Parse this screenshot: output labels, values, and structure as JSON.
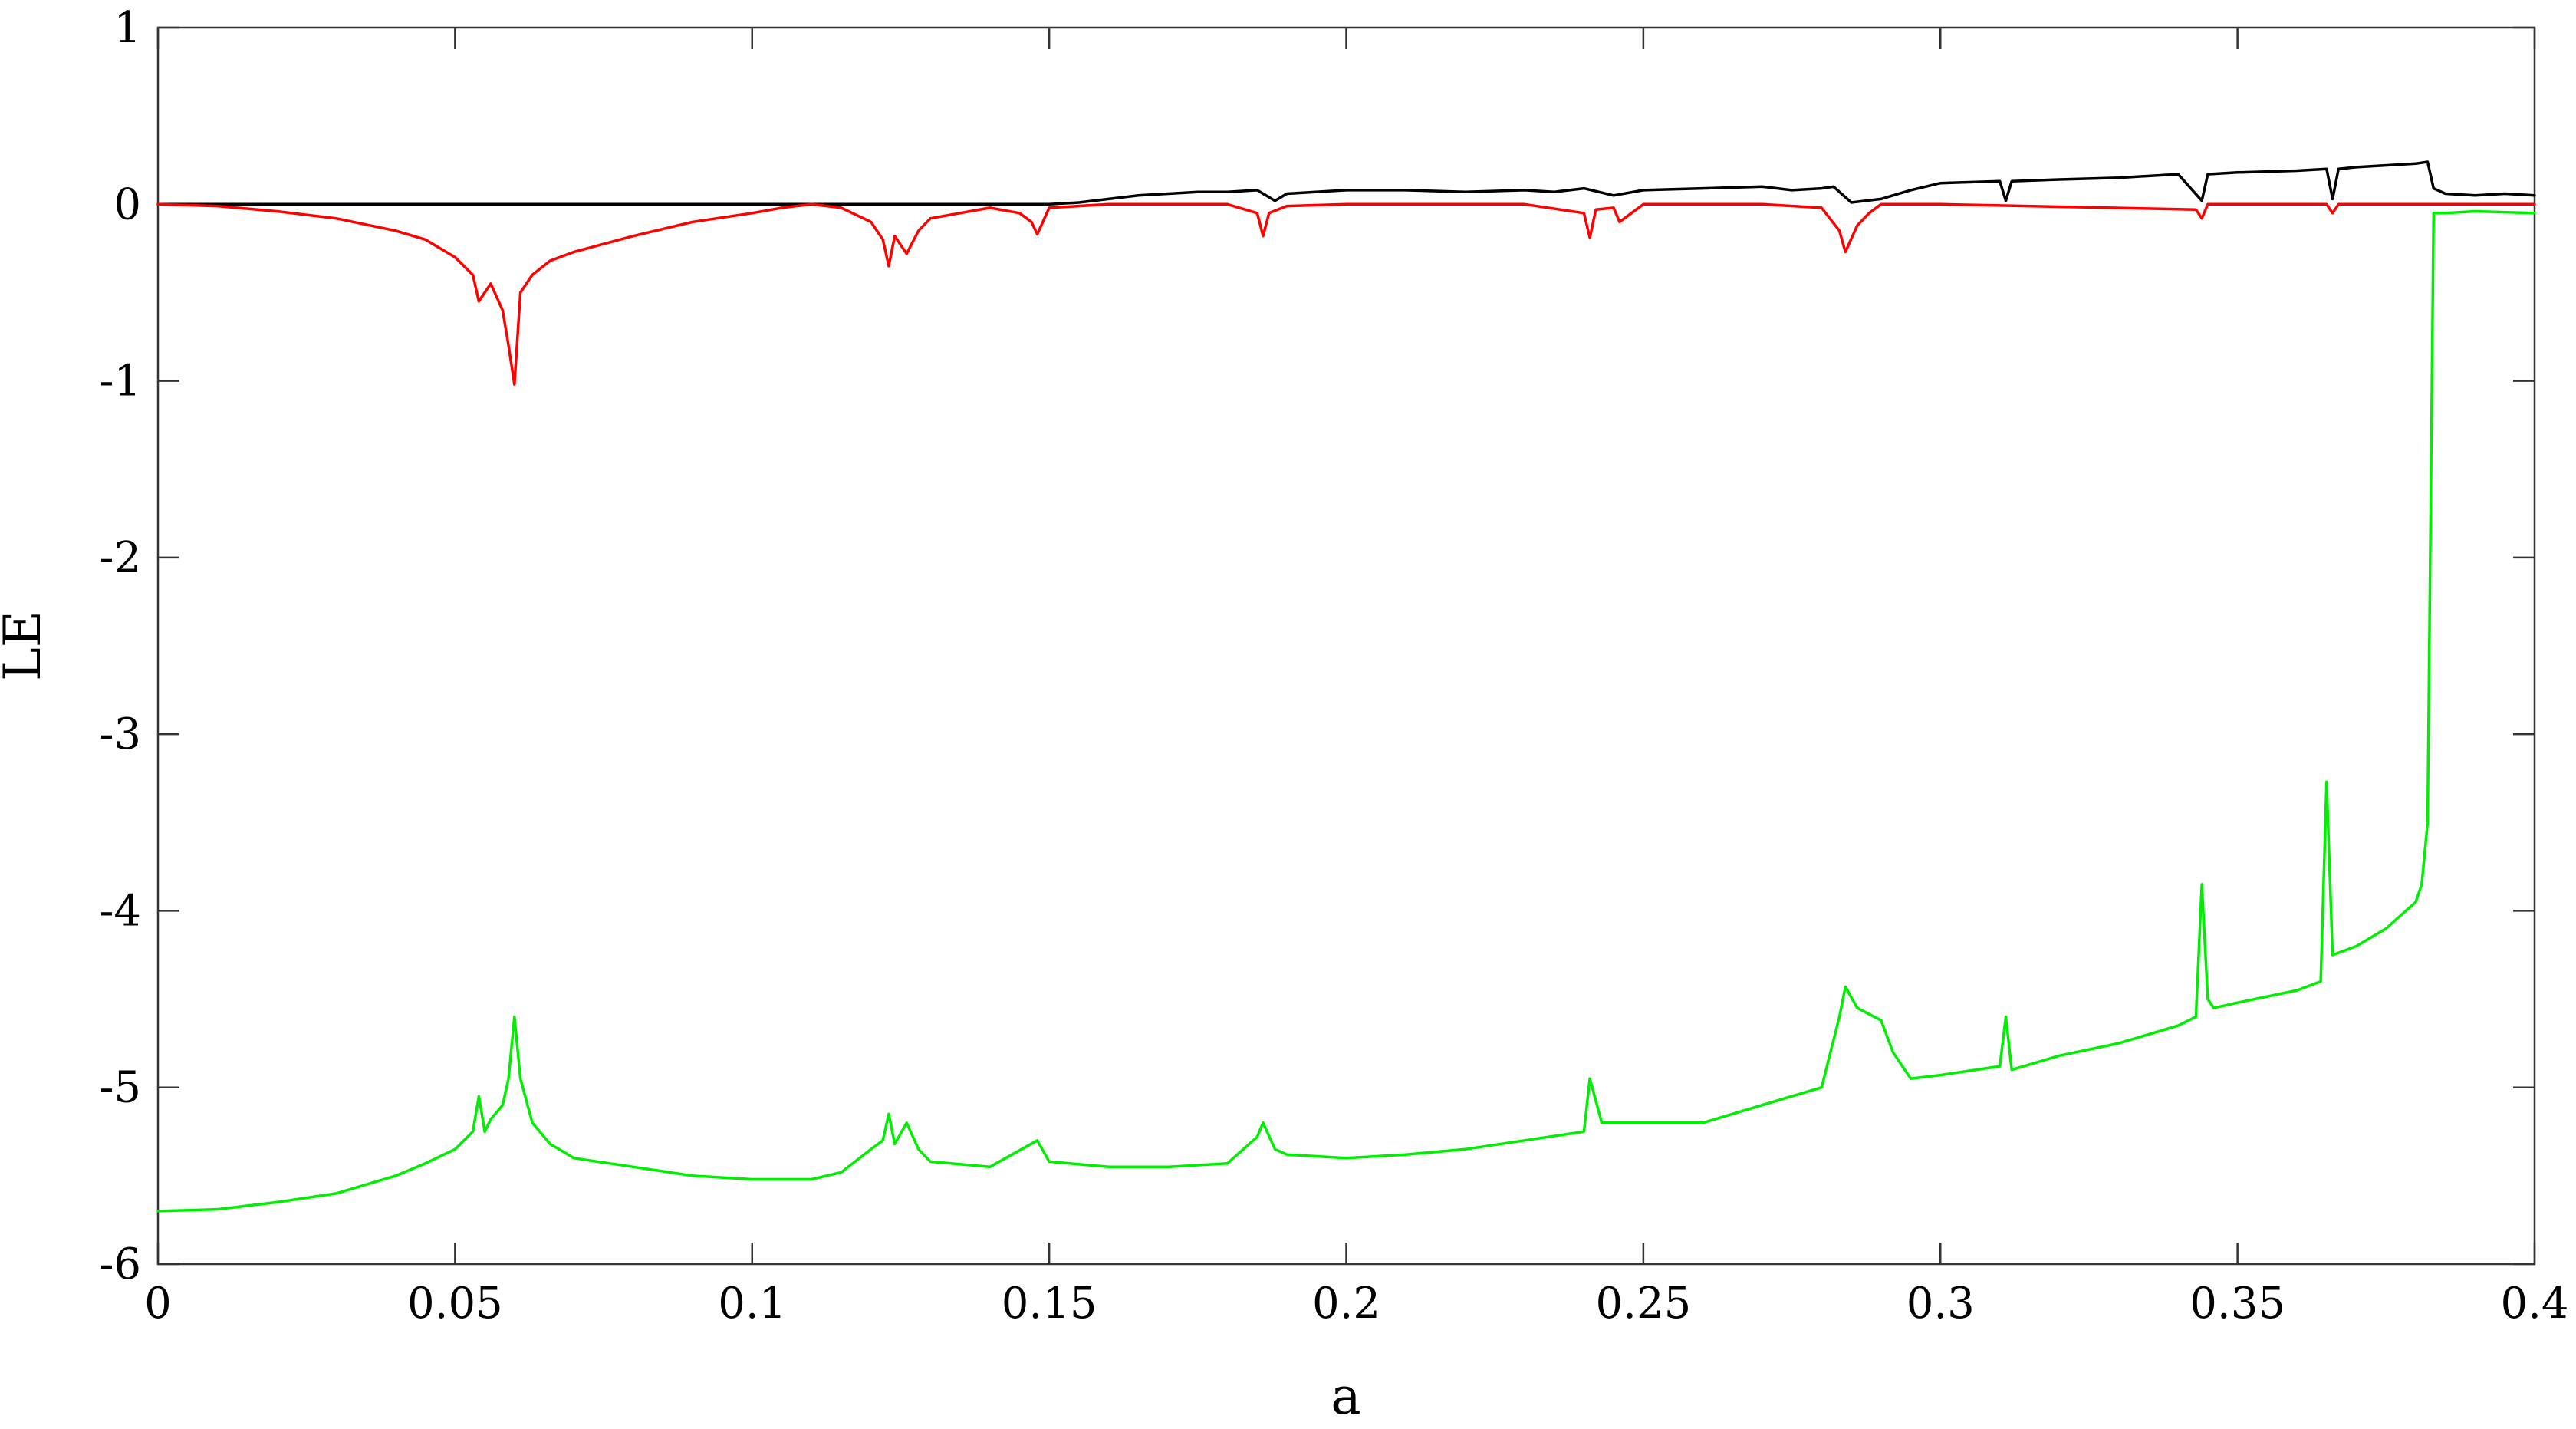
{
  "chart_data": {
    "type": "line",
    "title": "",
    "xlabel": "a",
    "ylabel": "LE",
    "xlim": [
      0,
      0.4
    ],
    "ylim": [
      -6,
      1
    ],
    "xticks": [
      0,
      0.05,
      0.1,
      0.15,
      0.2,
      0.25,
      0.3,
      0.35,
      0.4
    ],
    "xtick_labels": [
      "0",
      "0.05",
      "0.1",
      "0.15",
      "0.2",
      "0.25",
      "0.3",
      "0.35",
      "0.4"
    ],
    "yticks": [
      1,
      0,
      -1,
      -2,
      -3,
      -4,
      -5,
      -6
    ],
    "ytick_labels": [
      "1",
      "0",
      "-1",
      "-2",
      "-3",
      "-4",
      "-5",
      "-6"
    ],
    "grid": false,
    "legend": "none",
    "series": [
      {
        "color": "#000000",
        "x": [
          0,
          0.05,
          0.1,
          0.14,
          0.15,
          0.155,
          0.16,
          0.165,
          0.17,
          0.175,
          0.18,
          0.185,
          0.188,
          0.19,
          0.2,
          0.21,
          0.22,
          0.23,
          0.235,
          0.24,
          0.245,
          0.25,
          0.26,
          0.27,
          0.275,
          0.28,
          0.282,
          0.285,
          0.29,
          0.295,
          0.3,
          0.31,
          0.311,
          0.312,
          0.32,
          0.33,
          0.34,
          0.344,
          0.345,
          0.35,
          0.36,
          0.365,
          0.366,
          0.367,
          0.37,
          0.38,
          0.382,
          0.383,
          0.385,
          0.39,
          0.395,
          0.4
        ],
        "y": [
          0,
          0,
          0,
          0,
          0,
          0.01,
          0.03,
          0.05,
          0.06,
          0.07,
          0.07,
          0.08,
          0.02,
          0.06,
          0.08,
          0.08,
          0.07,
          0.08,
          0.07,
          0.09,
          0.05,
          0.08,
          0.09,
          0.1,
          0.08,
          0.09,
          0.1,
          0.01,
          0.03,
          0.08,
          0.12,
          0.13,
          0.02,
          0.13,
          0.14,
          0.15,
          0.17,
          0.02,
          0.17,
          0.18,
          0.19,
          0.2,
          0.03,
          0.2,
          0.21,
          0.23,
          0.24,
          0.09,
          0.06,
          0.05,
          0.06,
          0.05
        ]
      },
      {
        "color": "#ff0000",
        "x": [
          0,
          0.01,
          0.02,
          0.03,
          0.04,
          0.045,
          0.05,
          0.053,
          0.054,
          0.055,
          0.056,
          0.058,
          0.059,
          0.06,
          0.061,
          0.063,
          0.066,
          0.07,
          0.08,
          0.09,
          0.1,
          0.105,
          0.11,
          0.115,
          0.12,
          0.122,
          0.123,
          0.124,
          0.125,
          0.126,
          0.128,
          0.13,
          0.135,
          0.14,
          0.145,
          0.147,
          0.148,
          0.15,
          0.16,
          0.18,
          0.185,
          0.186,
          0.187,
          0.19,
          0.2,
          0.23,
          0.24,
          0.241,
          0.242,
          0.245,
          0.246,
          0.25,
          0.27,
          0.28,
          0.283,
          0.284,
          0.286,
          0.288,
          0.29,
          0.3,
          0.343,
          0.344,
          0.345,
          0.35,
          0.365,
          0.366,
          0.367,
          0.38,
          0.39,
          0.4
        ],
        "y": [
          0,
          -0.01,
          -0.04,
          -0.08,
          -0.15,
          -0.2,
          -0.3,
          -0.4,
          -0.55,
          -0.5,
          -0.45,
          -0.6,
          -0.8,
          -1.02,
          -0.5,
          -0.4,
          -0.32,
          -0.27,
          -0.18,
          -0.1,
          -0.05,
          -0.02,
          0,
          -0.02,
          -0.1,
          -0.2,
          -0.35,
          -0.18,
          -0.23,
          -0.28,
          -0.15,
          -0.08,
          -0.05,
          -0.02,
          -0.05,
          -0.1,
          -0.17,
          -0.02,
          0,
          0,
          -0.05,
          -0.18,
          -0.05,
          -0.01,
          0,
          0,
          -0.05,
          -0.19,
          -0.03,
          -0.02,
          -0.1,
          0,
          0,
          -0.02,
          -0.15,
          -0.27,
          -0.12,
          -0.05,
          0,
          0,
          -0.03,
          -0.08,
          0,
          0,
          0,
          -0.05,
          0,
          0,
          0,
          0
        ]
      },
      {
        "color": "#00ee00",
        "x": [
          0,
          0.01,
          0.02,
          0.03,
          0.04,
          0.045,
          0.05,
          0.053,
          0.054,
          0.055,
          0.056,
          0.058,
          0.059,
          0.06,
          0.061,
          0.063,
          0.066,
          0.07,
          0.08,
          0.09,
          0.1,
          0.11,
          0.115,
          0.12,
          0.122,
          0.123,
          0.124,
          0.126,
          0.128,
          0.13,
          0.14,
          0.148,
          0.15,
          0.16,
          0.17,
          0.18,
          0.185,
          0.186,
          0.188,
          0.19,
          0.2,
          0.21,
          0.22,
          0.23,
          0.24,
          0.241,
          0.243,
          0.25,
          0.26,
          0.27,
          0.28,
          0.283,
          0.284,
          0.286,
          0.29,
          0.292,
          0.295,
          0.3,
          0.31,
          0.311,
          0.312,
          0.32,
          0.33,
          0.34,
          0.343,
          0.344,
          0.345,
          0.346,
          0.35,
          0.36,
          0.364,
          0.365,
          0.366,
          0.37,
          0.375,
          0.38,
          0.381,
          0.382,
          0.383,
          0.385,
          0.39,
          0.4
        ],
        "y": [
          -5.7,
          -5.69,
          -5.65,
          -5.6,
          -5.5,
          -5.43,
          -5.35,
          -5.25,
          -5.05,
          -5.25,
          -5.18,
          -5.1,
          -4.95,
          -4.6,
          -4.95,
          -5.2,
          -5.32,
          -5.4,
          -5.45,
          -5.5,
          -5.52,
          -5.52,
          -5.48,
          -5.35,
          -5.3,
          -5.15,
          -5.32,
          -5.2,
          -5.35,
          -5.42,
          -5.45,
          -5.3,
          -5.42,
          -5.45,
          -5.45,
          -5.43,
          -5.28,
          -5.2,
          -5.35,
          -5.38,
          -5.4,
          -5.38,
          -5.35,
          -5.3,
          -5.25,
          -4.95,
          -5.2,
          -5.2,
          -5.2,
          -5.1,
          -5.0,
          -4.6,
          -4.43,
          -4.55,
          -4.62,
          -4.8,
          -4.95,
          -4.93,
          -4.88,
          -4.6,
          -4.9,
          -4.82,
          -4.75,
          -4.65,
          -4.6,
          -3.85,
          -4.5,
          -4.55,
          -4.52,
          -4.45,
          -4.4,
          -3.27,
          -4.25,
          -4.2,
          -4.1,
          -3.95,
          -3.85,
          -3.5,
          -0.05,
          -0.05,
          -0.04,
          -0.05
        ]
      }
    ]
  }
}
